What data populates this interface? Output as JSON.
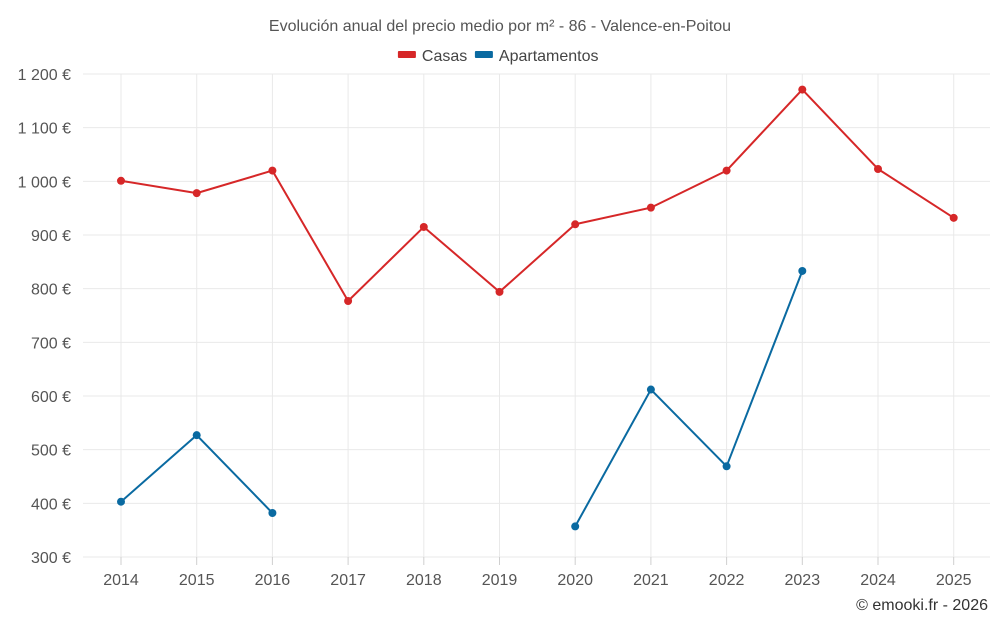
{
  "chart_data": {
    "type": "line",
    "title": "Evolución anual del precio medio por m² - 86 - Valence-en-Poitou",
    "categories": [
      "2014",
      "2015",
      "2016",
      "2017",
      "2018",
      "2019",
      "2020",
      "2021",
      "2022",
      "2023",
      "2024",
      "2025"
    ],
    "series": [
      {
        "name": "Casas",
        "color": "#d62728",
        "values": [
          1001,
          978,
          1020,
          777,
          915,
          794,
          920,
          951,
          1020,
          1171,
          1023,
          932
        ]
      },
      {
        "name": "Apartamentos",
        "color": "#0a6aa1",
        "values": [
          403,
          527,
          382,
          null,
          null,
          null,
          357,
          612,
          469,
          833,
          null,
          null
        ]
      }
    ],
    "yticks": [
      300,
      400,
      500,
      600,
      700,
      800,
      900,
      1000,
      1100,
      1200
    ],
    "ytick_labels": [
      "300 €",
      "400 €",
      "500 €",
      "600 €",
      "700 €",
      "800 €",
      "900 €",
      "1 000 €",
      "1 100 €",
      "1 200 €"
    ],
    "ylim": [
      300,
      1200
    ],
    "xlabel": "",
    "ylabel": "",
    "grid": true,
    "legend_position": "top-center"
  },
  "credit": "© emooki.fr - 2026"
}
